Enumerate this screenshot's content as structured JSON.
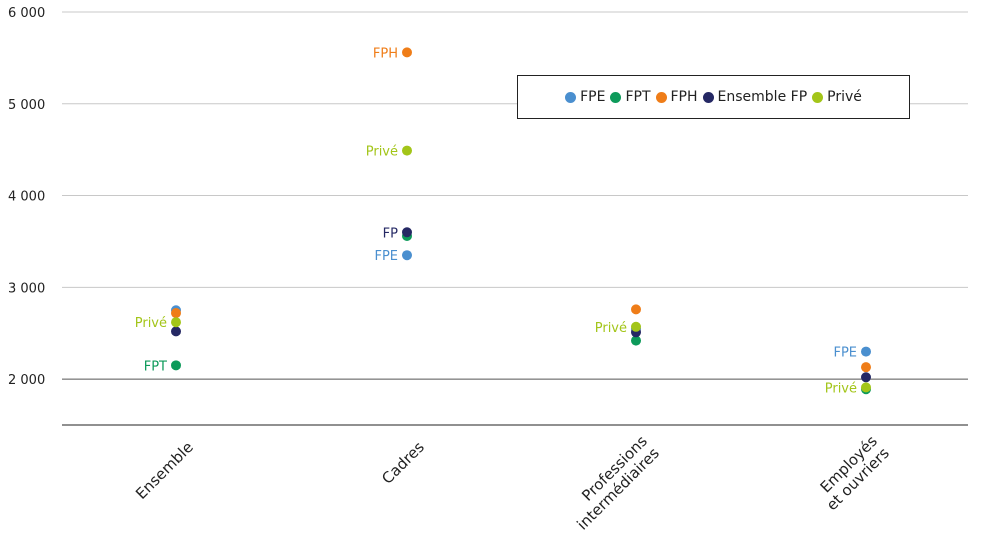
{
  "chart_data": {
    "type": "scatter",
    "categories": [
      "Ensemble",
      "Cadres",
      "Professions intermédiaires",
      "Employés et ouvriers"
    ],
    "category_labels": [
      [
        "Ensemble"
      ],
      [
        "Cadres"
      ],
      [
        "Professions",
        "intermédiaires"
      ],
      [
        "Employés",
        "et ouvriers"
      ]
    ],
    "ylim": [
      1500,
      6000
    ],
    "yticks": [
      2000,
      3000,
      4000,
      5000,
      6000
    ],
    "ytick_labels": [
      "2 000",
      "3 000",
      "4 000",
      "5 000",
      "6 000"
    ],
    "grid": true,
    "legend_position": "top-right",
    "series": [
      {
        "name": "FPE",
        "color": "#4a8fcf",
        "values": [
          2750,
          3350,
          2550,
          2300
        ]
      },
      {
        "name": "FPT",
        "color": "#0d9a5a",
        "values": [
          2150,
          3560,
          2420,
          1890
        ]
      },
      {
        "name": "FPH",
        "color": "#ef7d18",
        "values": [
          2720,
          5560,
          2760,
          2130
        ]
      },
      {
        "name": "Ensemble FP",
        "color": "#252864",
        "values": [
          2520,
          3600,
          2510,
          2020
        ]
      },
      {
        "name": "Privé",
        "color": "#a3c519",
        "values": [
          2620,
          4490,
          2570,
          1910
        ]
      }
    ],
    "annotations": [
      {
        "text": "Privé",
        "category": 0,
        "series": 4
      },
      {
        "text": "FPT",
        "category": 0,
        "series": 1
      },
      {
        "text": "FPH",
        "category": 1,
        "series": 2
      },
      {
        "text": "Privé",
        "category": 1,
        "series": 4
      },
      {
        "text": "FP",
        "category": 1,
        "series": 3
      },
      {
        "text": "FPE",
        "category": 1,
        "series": 0
      },
      {
        "text": "Privé",
        "category": 2,
        "series": 4
      },
      {
        "text": "FPE",
        "category": 3,
        "series": 0
      },
      {
        "text": "Privé",
        "category": 3,
        "series": 4
      }
    ]
  }
}
